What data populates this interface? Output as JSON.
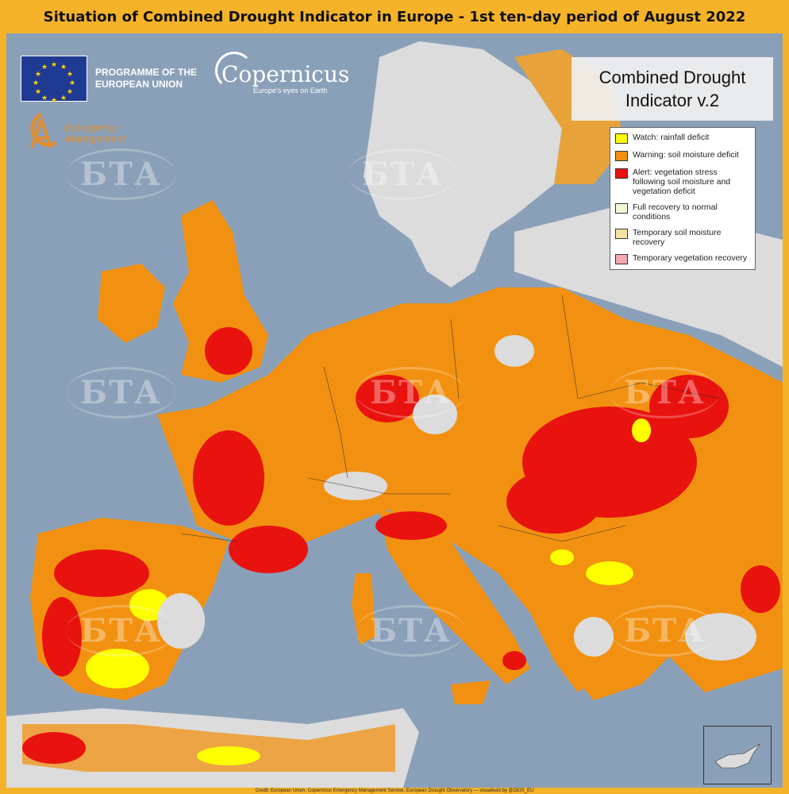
{
  "title": "Situation of Combined Drought Indicator in Europe - 1st ten-day period of August 2022",
  "logos": {
    "programme_line1": "PROGRAMME OF THE",
    "programme_line2": "EUROPEAN UNION",
    "copernicus_name": "Copernicus",
    "copernicus_tagline": "Europe's eyes on Earth",
    "em_line1": "Emergency",
    "em_line2": "Management"
  },
  "watermark_text": "БТА",
  "indicator_title_line1": "Combined Drought",
  "indicator_title_line2": "Indicator v.2",
  "legend": [
    {
      "label": "Watch: rainfall deficit",
      "color": "#ffff00"
    },
    {
      "label": "Warning: soil moisture deficit",
      "color": "#f29111"
    },
    {
      "label": "Alert: vegetation stress following soil moisture and vegetation deficit",
      "color": "#e8130f"
    },
    {
      "label": "Full recovery to normal conditions",
      "color": "#f2f8d6"
    },
    {
      "label": "Temporary soil moisture recovery",
      "color": "#f6e3a1"
    },
    {
      "label": "Temporary vegetation recovery",
      "color": "#f5a8ad"
    }
  ],
  "colors": {
    "sea": "#8aa0b8",
    "land_no_data": "#dcdcdc",
    "frame": "#f5b32a",
    "watch": "#ffff00",
    "warning": "#f29111",
    "alert": "#e8130f"
  },
  "credit": "Credit: European Union, Copernicus Emergency Management Service, European Drought Observatory — visualised by @DEIS_EU"
}
